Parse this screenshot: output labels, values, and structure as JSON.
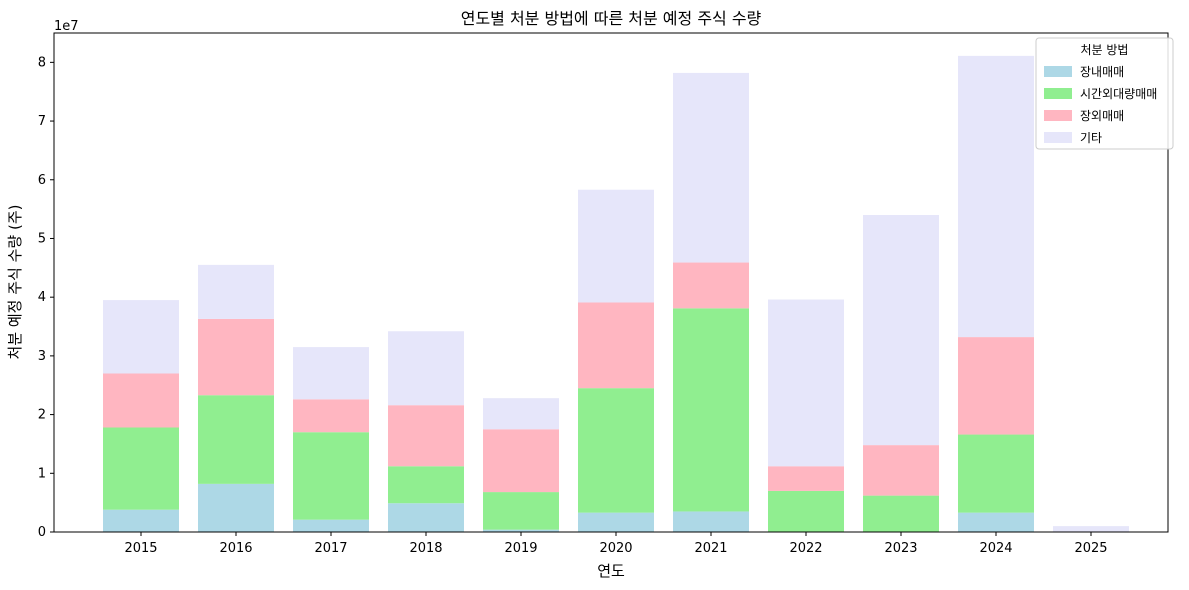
{
  "chart_data": {
    "type": "bar",
    "stacked": true,
    "title": "연도별 처분 방법에 따른 처분 예정 주식 수량",
    "xlabel": "연도",
    "ylabel": "처분 예정 주식 수량 (주)",
    "offset_label": "1e7",
    "categories": [
      "2015",
      "2016",
      "2017",
      "2018",
      "2019",
      "2020",
      "2021",
      "2022",
      "2023",
      "2024",
      "2025"
    ],
    "ylim": [
      0,
      85000000
    ],
    "yticks": [
      0,
      10000000,
      20000000,
      30000000,
      40000000,
      50000000,
      60000000,
      70000000,
      80000000
    ],
    "ytick_labels": [
      "0",
      "1",
      "2",
      "3",
      "4",
      "5",
      "6",
      "7",
      "8"
    ],
    "grid": false,
    "legend": {
      "title": "처분 방법",
      "position": "top-right"
    },
    "series": [
      {
        "name": "장내매매",
        "color": "#add8e6",
        "values": [
          3800000,
          8200000,
          2100000,
          4900000,
          400000,
          3300000,
          3500000,
          0,
          0,
          3300000,
          0
        ]
      },
      {
        "name": "시간외대량매매",
        "color": "#90ee90",
        "values": [
          14000000,
          15100000,
          14900000,
          6300000,
          6400000,
          21200000,
          34600000,
          7000000,
          6200000,
          13300000,
          0
        ]
      },
      {
        "name": "장외매매",
        "color": "#ffb6c1",
        "values": [
          9200000,
          13000000,
          5600000,
          10400000,
          10700000,
          14600000,
          7800000,
          4200000,
          8600000,
          16600000,
          0
        ]
      },
      {
        "name": "기타",
        "color": "#e6e6fa",
        "values": [
          12500000,
          9200000,
          8900000,
          12600000,
          5300000,
          19200000,
          32300000,
          28400000,
          39200000,
          47900000,
          1000000
        ]
      }
    ]
  }
}
